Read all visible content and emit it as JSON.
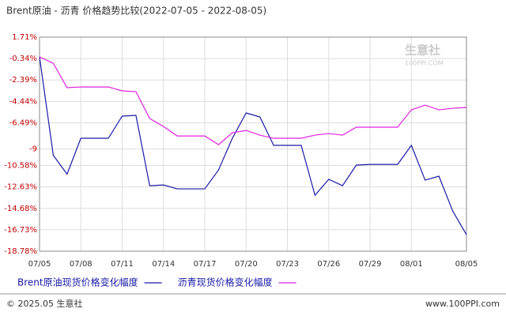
{
  "chart_data": {
    "type": "line",
    "title": "Brent原油 - 沥青 价格趋势比较(2022-07-05 - 2022-08-05)",
    "categories": [
      "07/05",
      null,
      null,
      "07/08",
      null,
      null,
      "07/11",
      null,
      null,
      "07/14",
      null,
      null,
      "07/17",
      null,
      null,
      "07/20",
      null,
      null,
      "07/23",
      null,
      null,
      "07/26",
      null,
      null,
      "07/29",
      null,
      null,
      "08/01",
      null,
      null,
      null,
      "08/05"
    ],
    "series": [
      {
        "name": "Brent原油现货价格变化幅度",
        "color": "#1a1aa8",
        "values": [
          -0.18,
          -9.6,
          -11.4,
          -7.97,
          -7.97,
          -7.97,
          -5.85,
          -5.78,
          -12.51,
          -12.44,
          -12.81,
          -12.81,
          -12.81,
          -11.0,
          -7.97,
          -5.55,
          -5.93,
          -8.65,
          -8.65,
          -8.65,
          -13.42,
          -11.9,
          -12.51,
          -10.54,
          -10.47,
          -10.47,
          -10.47,
          -8.65,
          -11.98,
          -11.6,
          -14.93,
          -17.2
        ]
      },
      {
        "name": "沥青现货价格变化幅度",
        "color": "#e020e0",
        "values": [
          -0.18,
          -0.79,
          -3.13,
          -3.06,
          -3.06,
          -3.06,
          -3.43,
          -3.51,
          -6.08,
          -6.84,
          -7.75,
          -7.75,
          -7.75,
          -8.58,
          -7.44,
          -7.22,
          -7.67,
          -7.97,
          -7.97,
          -7.97,
          -7.67,
          -7.52,
          -7.67,
          -6.91,
          -6.91,
          -6.91,
          -6.91,
          -5.25,
          -4.8,
          -5.25,
          -5.1,
          -5.02
        ]
      }
    ],
    "ylim": [
      -18.78,
      1.71
    ],
    "yticks": [
      {
        "value": 1.71,
        "label": "1.71%"
      },
      {
        "value": -0.34,
        "label": "-0.34%"
      },
      {
        "value": -2.39,
        "label": "-2.39%"
      },
      {
        "value": -4.44,
        "label": "-4.44%"
      },
      {
        "value": -6.49,
        "label": "-6.49%"
      },
      -9,
      {
        "value": -10.58,
        "label": "-10.58%"
      },
      {
        "value": -12.63,
        "label": "-12.63%"
      },
      {
        "value": -14.68,
        "label": "-14.68%"
      },
      {
        "value": -16.73,
        "label": "-16.73%"
      },
      {
        "value": -18.78,
        "label": "-18.78%"
      }
    ],
    "grid": true,
    "watermark": "生意社",
    "watermark_sub": "100PPI.COM",
    "footer_left": "© 2025.05 生意社",
    "footer_right": "www.100PPI.com"
  }
}
